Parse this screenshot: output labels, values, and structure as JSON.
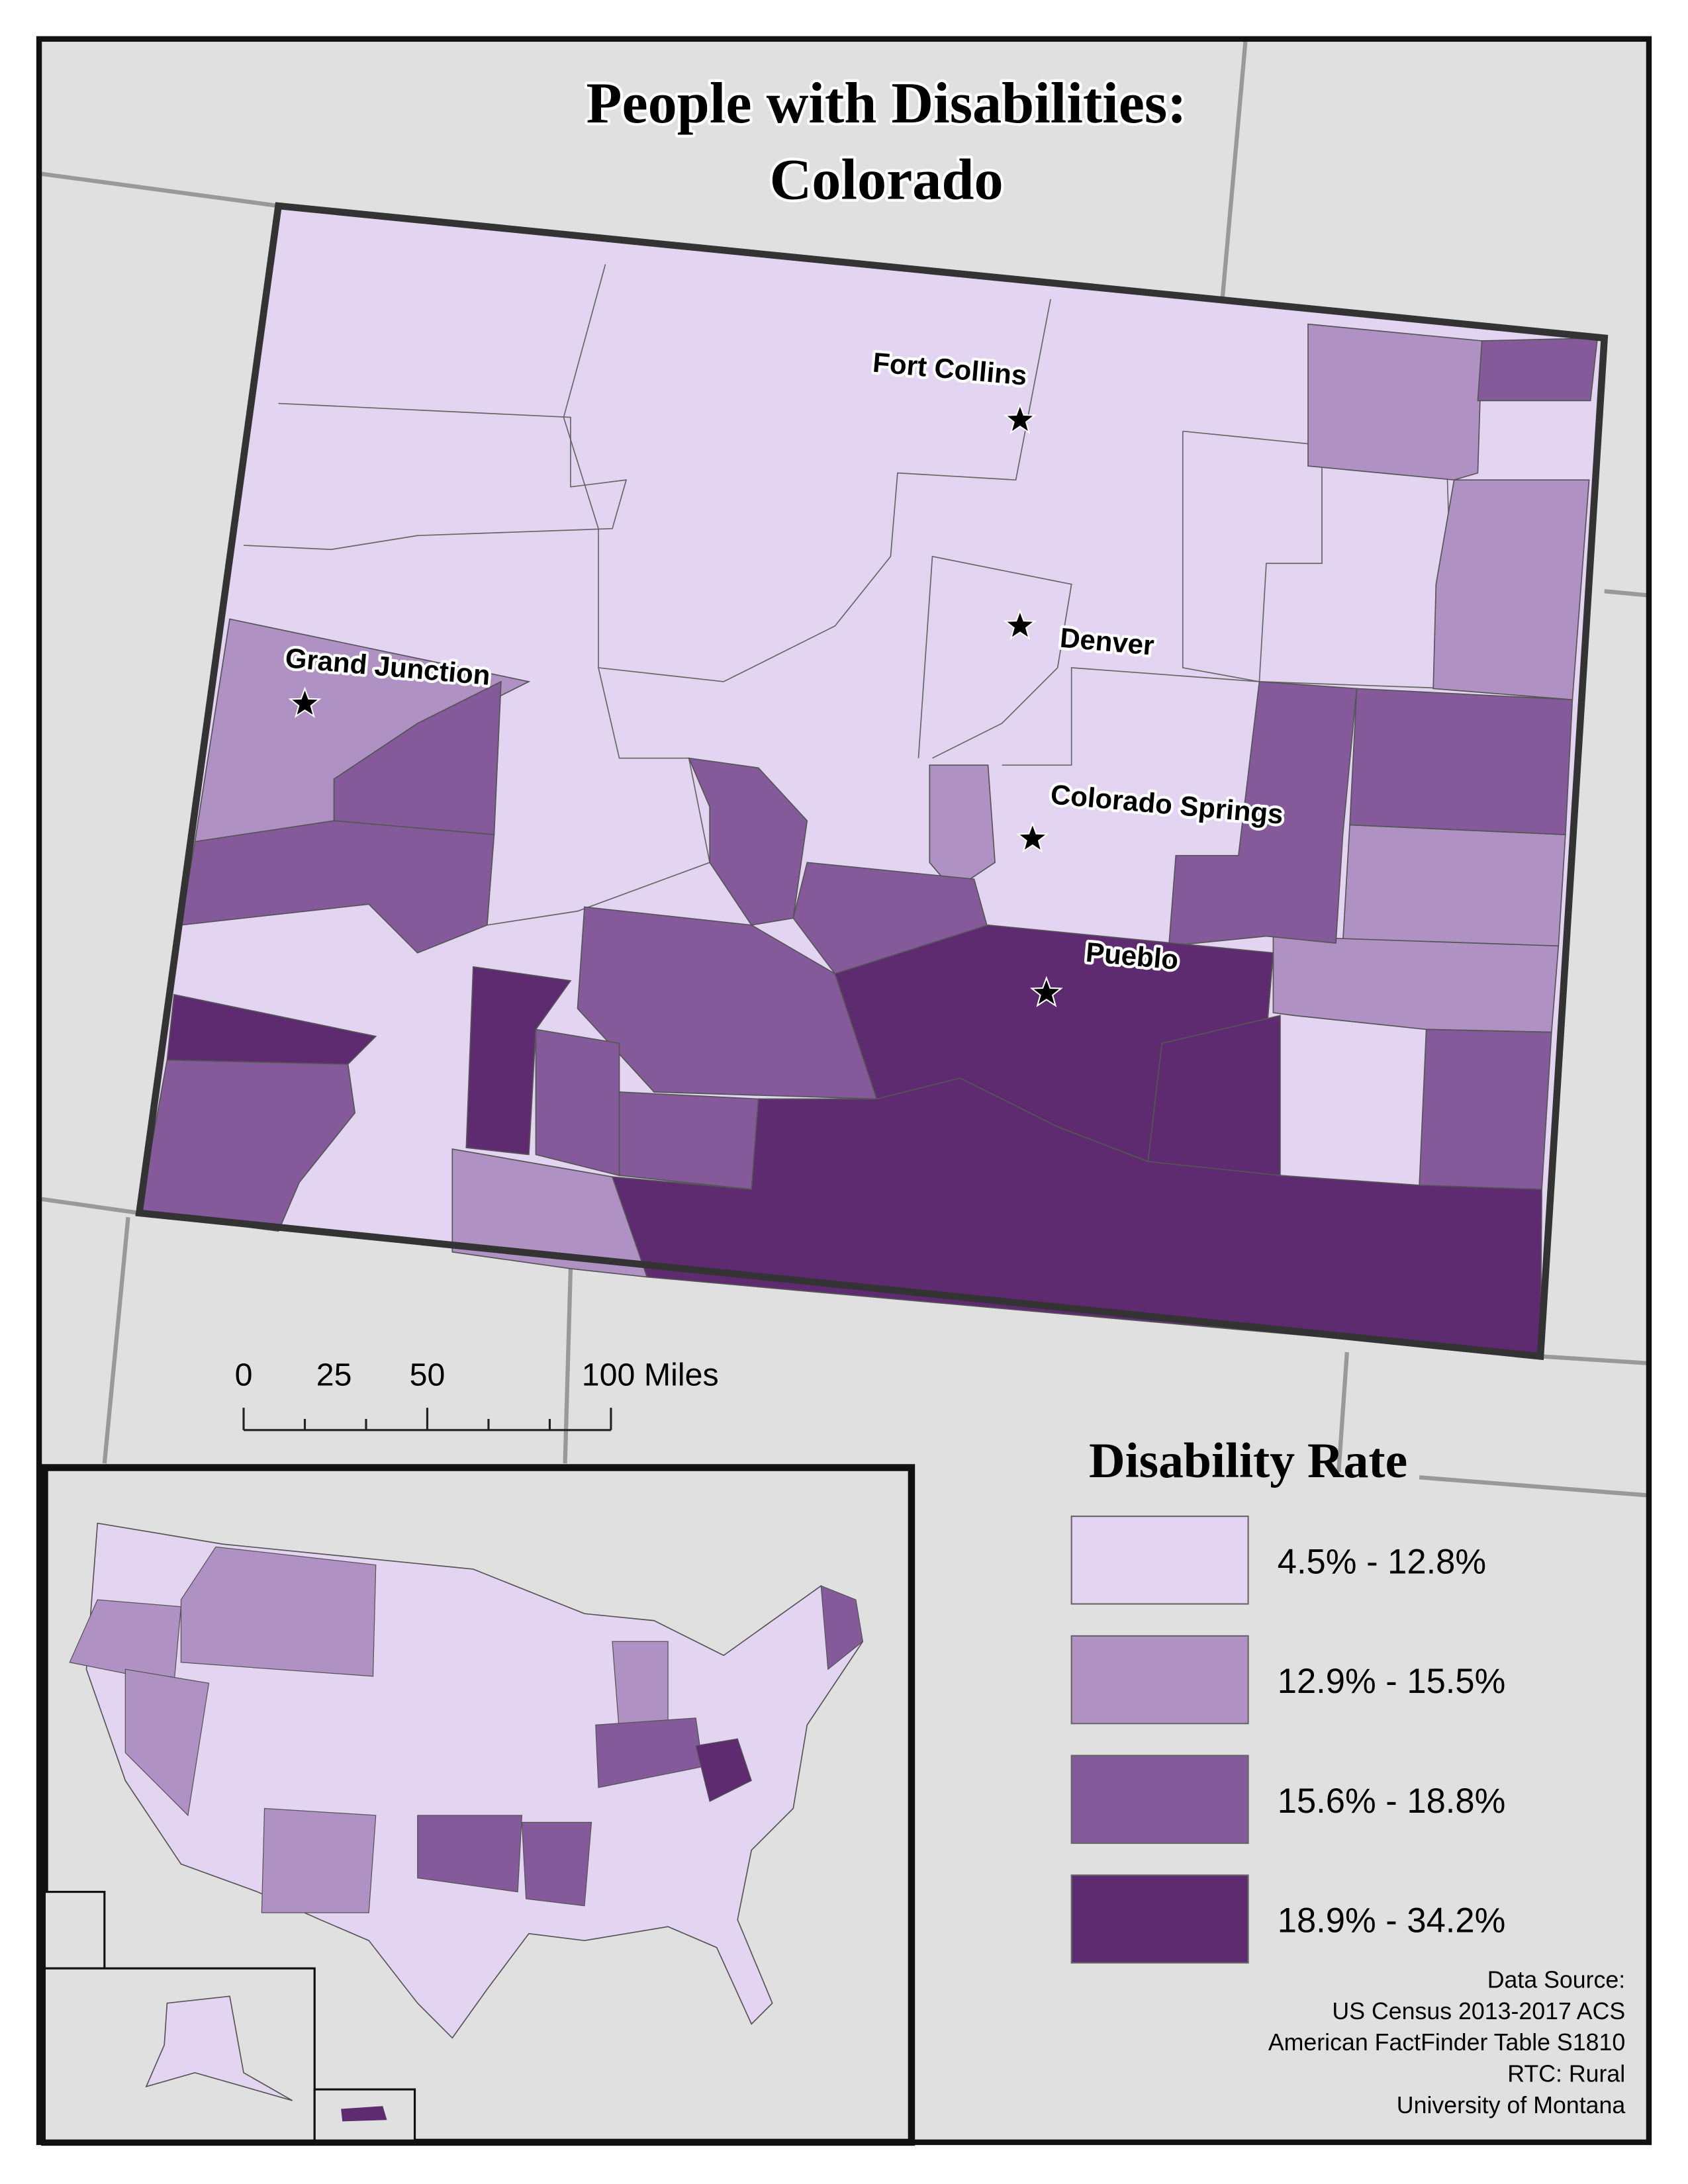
{
  "title": {
    "lines": [
      "People with Disabilities:",
      "Colorado"
    ]
  },
  "cities": [
    {
      "name": "Fort Collins"
    },
    {
      "name": "Denver"
    },
    {
      "name": "Grand Junction"
    },
    {
      "name": "Colorado Springs"
    },
    {
      "name": "Pueblo"
    }
  ],
  "scale_bar": {
    "labels": [
      "0",
      "25",
      "50",
      "100 Miles"
    ]
  },
  "legend": {
    "title": "Disability Rate",
    "items": [
      {
        "label": "4.5% - 12.8%",
        "color": "#e3d5f1"
      },
      {
        "label": "12.9% - 15.5%",
        "color": "#b091c4"
      },
      {
        "label": "15.6% - 18.8%",
        "color": "#845a9b"
      },
      {
        "label": "18.9% - 34.2%",
        "color": "#5e2a70"
      }
    ]
  },
  "source": {
    "lines": [
      "Data Source:",
      "US Census 2013-2017 ACS",
      "American FactFinder Table S1810",
      "RTC: Rural",
      "University of Montana"
    ]
  }
}
